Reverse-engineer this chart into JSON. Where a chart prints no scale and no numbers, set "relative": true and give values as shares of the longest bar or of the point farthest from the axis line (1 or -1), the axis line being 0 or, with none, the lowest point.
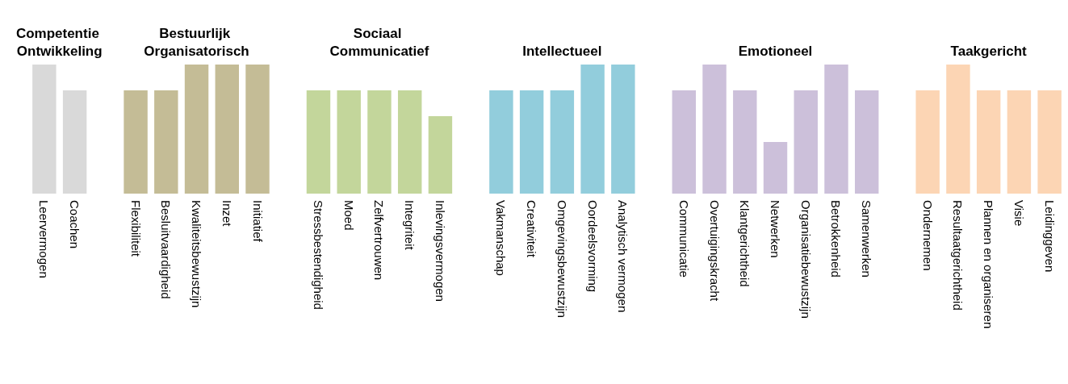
{
  "chart_data": {
    "type": "bar",
    "relative": true,
    "categories": [
      "Leervermogen",
      "Coachen",
      null,
      "Flexibiliteit",
      "Besluitvaardigheid",
      "Kwaliteitsbewustzijn",
      "Inzet",
      "Initiatief",
      null,
      "Stressbestendigheid",
      "Moed",
      "Zelfvertrouwen",
      "Integriteit",
      "Inlevingsvermogen",
      null,
      "Vakmanschap",
      "Creativiteit",
      "Omgevingsbewustzijn",
      "Oordeelsvorming",
      "Analytisch vermogen",
      null,
      "Communicatie",
      "Overtuigingskracht",
      "Klantgerichtheid",
      "Netwerken",
      "Organisatiebewustzijn",
      "Betrokkenheid",
      "Samenwerken",
      null,
      "Ondernemen",
      "Resultaatgerichtheid",
      "Plannen en organiseren",
      "Visie",
      "Leidinggeven"
    ],
    "series": [
      {
        "name": "Competentie Ontwikkeling",
        "color": "#d9d9d9",
        "values": [
          1,
          0.8,
          null,
          null,
          null,
          null,
          null,
          null,
          null,
          null,
          null,
          null,
          null,
          null,
          null,
          null,
          null,
          null,
          null,
          null,
          null,
          null,
          null,
          null,
          null,
          null,
          null,
          null,
          null,
          null,
          null,
          null,
          null,
          null
        ]
      },
      {
        "name": "Bestuurlijk Organisatorisch",
        "color": "#c4bc96",
        "values": [
          null,
          null,
          null,
          0.8,
          0.8,
          1,
          1,
          1,
          null,
          null,
          null,
          null,
          null,
          null,
          null,
          null,
          null,
          null,
          null,
          null,
          null,
          null,
          null,
          null,
          null,
          null,
          null,
          null,
          null,
          null,
          null,
          null,
          null,
          null
        ]
      },
      {
        "name": "Sociaal Communicatief",
        "color": "#c3d69b",
        "values": [
          null,
          null,
          null,
          null,
          null,
          null,
          null,
          null,
          null,
          0.8,
          0.8,
          0.8,
          0.8,
          0.6,
          null,
          null,
          null,
          null,
          null,
          null,
          null,
          null,
          null,
          null,
          null,
          null,
          null,
          null,
          null,
          null,
          null,
          null,
          null,
          null
        ]
      },
      {
        "name": "Intellectueel",
        "color": "#92cddc",
        "values": [
          null,
          null,
          null,
          null,
          null,
          null,
          null,
          null,
          null,
          null,
          null,
          null,
          null,
          null,
          null,
          0.8,
          0.8,
          0.8,
          1,
          1,
          null,
          null,
          null,
          null,
          null,
          null,
          null,
          null,
          null,
          null,
          null,
          null,
          null,
          null
        ]
      },
      {
        "name": "Emotioneel",
        "color": "#ccc0da",
        "values": [
          null,
          null,
          null,
          null,
          null,
          null,
          null,
          null,
          null,
          null,
          null,
          null,
          null,
          null,
          null,
          null,
          null,
          null,
          null,
          null,
          null,
          0.8,
          1,
          0.8,
          0.4,
          0.8,
          1,
          0.8,
          null,
          null,
          null,
          null,
          null,
          null
        ]
      },
      {
        "name": "Taakgericht",
        "color": "#fcd5b4",
        "values": [
          null,
          null,
          null,
          null,
          null,
          null,
          null,
          null,
          null,
          null,
          null,
          null,
          null,
          null,
          null,
          null,
          null,
          null,
          null,
          null,
          null,
          null,
          null,
          null,
          null,
          null,
          null,
          null,
          null,
          0.8,
          1,
          0.8,
          0.8,
          0.8
        ]
      }
    ]
  }
}
